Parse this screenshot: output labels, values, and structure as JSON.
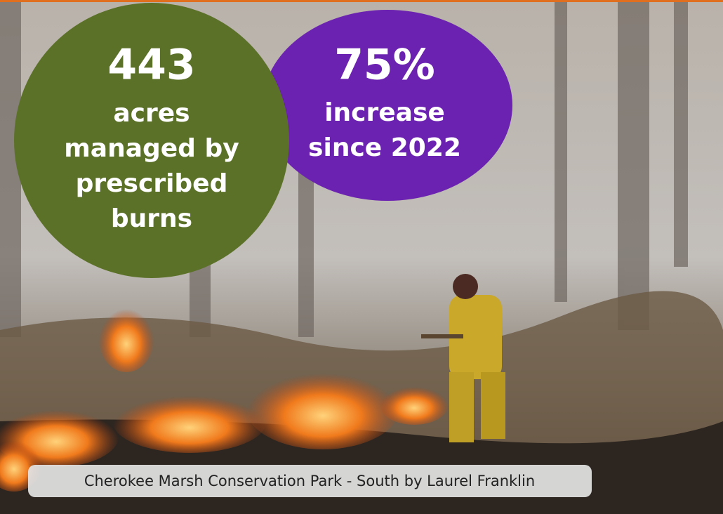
{
  "stats": [
    {
      "figure": "443",
      "lines": [
        "acres",
        "managed by",
        "prescribed",
        "burns"
      ]
    },
    {
      "figure": "75%",
      "lines": [
        "increase",
        "since 2022"
      ]
    }
  ],
  "caption": "Cherokee Marsh Conservation Park - South by Laurel Franklin"
}
